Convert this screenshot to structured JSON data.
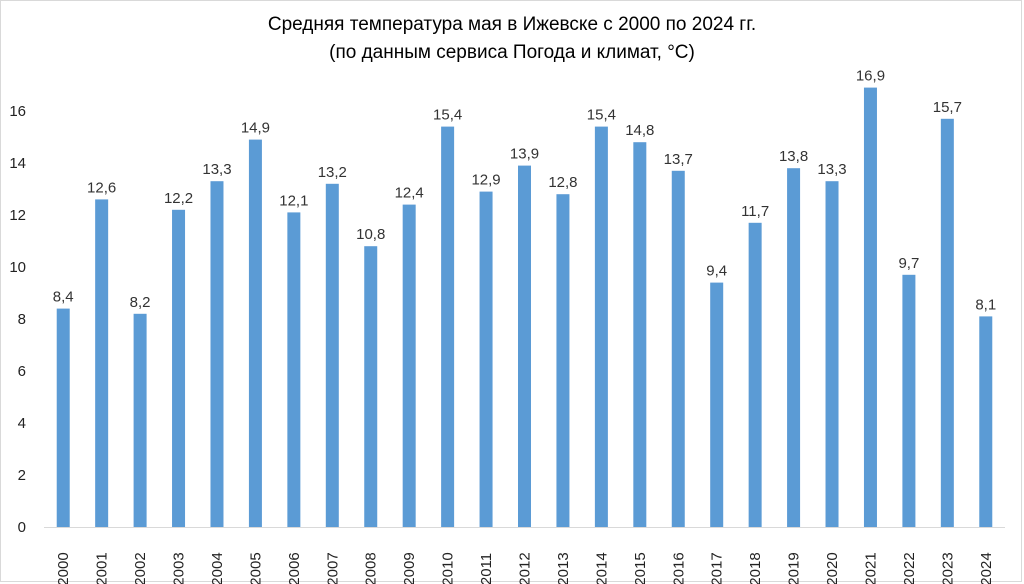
{
  "chart_data": {
    "type": "bar",
    "title": "Средняя температура мая в Ижевске с 2000 по 2024 гг.",
    "subtitle": "(по данным сервиса Погода и климат, °C)",
    "xlabel": "",
    "ylabel": "",
    "categories": [
      "2000",
      "2001",
      "2002",
      "2003",
      "2004",
      "2005",
      "2006",
      "2007",
      "2008",
      "2009",
      "2010",
      "2011",
      "2012",
      "2013",
      "2014",
      "2015",
      "2016",
      "2017",
      "2018",
      "2019",
      "2020",
      "2021",
      "2022",
      "2023",
      "2024"
    ],
    "values": [
      8.4,
      12.6,
      8.2,
      12.2,
      13.3,
      14.9,
      12.1,
      13.2,
      10.8,
      12.4,
      15.4,
      12.9,
      13.9,
      12.8,
      15.4,
      14.8,
      13.7,
      9.4,
      11.7,
      13.8,
      13.3,
      16.9,
      9.7,
      15.7,
      8.1
    ],
    "data_labels": [
      "8,4",
      "12,6",
      "8,2",
      "12,2",
      "13,3",
      "14,9",
      "12,1",
      "13,2",
      "10,8",
      "12,4",
      "15,4",
      "12,9",
      "13,9",
      "12,8",
      "15,4",
      "14,8",
      "13,7",
      "9,4",
      "11,7",
      "13,8",
      "13,3",
      "16,9",
      "9,7",
      "15,7",
      "8,1"
    ],
    "y_ticks": [
      "0",
      "2",
      "4",
      "6",
      "8",
      "10",
      "12",
      "14",
      "16"
    ],
    "ylim": [
      0,
      16
    ],
    "grid": false,
    "legend": "none",
    "colors": {
      "bar": "#5b9bd5",
      "axis": "#d9d9d9",
      "text": "#333333"
    }
  }
}
